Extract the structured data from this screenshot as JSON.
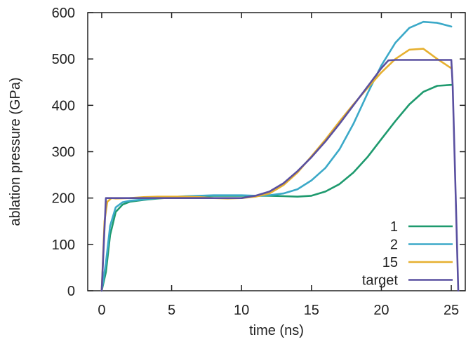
{
  "chart_data": {
    "type": "line",
    "xlabel": "time (ns)",
    "ylabel": "ablation pressure (GPa)",
    "xlim": [
      -1,
      26
    ],
    "ylim": [
      0,
      600
    ],
    "xticks": [
      0,
      5,
      10,
      15,
      20,
      25
    ],
    "yticks": [
      0,
      100,
      200,
      300,
      400,
      500,
      600
    ],
    "grid": false,
    "legend_position": "bottom-right",
    "series": [
      {
        "name": "1",
        "color": "#1e9a6e",
        "x": [
          0,
          0.3,
          0.6,
          1,
          1.5,
          2,
          3,
          4,
          5,
          6,
          7,
          8,
          9,
          10,
          11,
          12,
          13,
          14,
          15,
          16,
          17,
          18,
          19,
          20,
          21,
          22,
          23,
          24,
          25
        ],
        "y": [
          0,
          40,
          120,
          170,
          186,
          192,
          196,
          199,
          201,
          203,
          204,
          205,
          205,
          205,
          205,
          205,
          204,
          203,
          205,
          214,
          230,
          255,
          288,
          327,
          366,
          402,
          429,
          442,
          444
        ]
      },
      {
        "name": "2",
        "color": "#3ba9c8",
        "x": [
          0,
          0.3,
          0.6,
          1,
          1.5,
          2,
          3,
          4,
          5,
          6,
          7,
          8,
          9,
          10,
          11,
          12,
          13,
          14,
          15,
          16,
          17,
          18,
          19,
          20,
          21,
          22,
          23,
          24,
          25
        ],
        "y": [
          0,
          60,
          140,
          180,
          191,
          194,
          197,
          200,
          202,
          204,
          205,
          206,
          206,
          206,
          205,
          206,
          210,
          219,
          238,
          265,
          305,
          360,
          425,
          486,
          535,
          567,
          580,
          578,
          570
        ]
      },
      {
        "name": "15",
        "color": "#e6b030",
        "x": [
          0,
          0.2,
          0.4,
          0.7,
          1,
          2,
          3,
          4,
          5,
          6,
          7,
          8,
          9,
          10,
          11,
          12,
          13,
          14,
          15,
          16,
          17,
          18,
          19,
          20,
          21,
          22,
          23,
          24,
          25
        ],
        "y": [
          0,
          150,
          192,
          200,
          199,
          200,
          202,
          203,
          203,
          203,
          202,
          200,
          199,
          200,
          203,
          210,
          228,
          255,
          290,
          326,
          365,
          402,
          437,
          471,
          500,
          520,
          522,
          500,
          480
        ]
      },
      {
        "name": "target",
        "color": "#5a50a0",
        "x": [
          0,
          0.3,
          1,
          2,
          3,
          4,
          5,
          6,
          7,
          8,
          9,
          10,
          11,
          12,
          13,
          14,
          15,
          16,
          17,
          18,
          19,
          20,
          20.5,
          21,
          22,
          23,
          24,
          25,
          25.1,
          25.5
        ],
        "y": [
          0,
          200,
          200,
          200,
          200,
          200,
          200,
          200,
          200,
          200,
          200,
          200,
          205,
          214,
          232,
          258,
          288,
          322,
          360,
          400,
          440,
          480,
          497,
          498,
          498,
          498,
          498,
          498,
          440,
          0
        ]
      }
    ]
  }
}
